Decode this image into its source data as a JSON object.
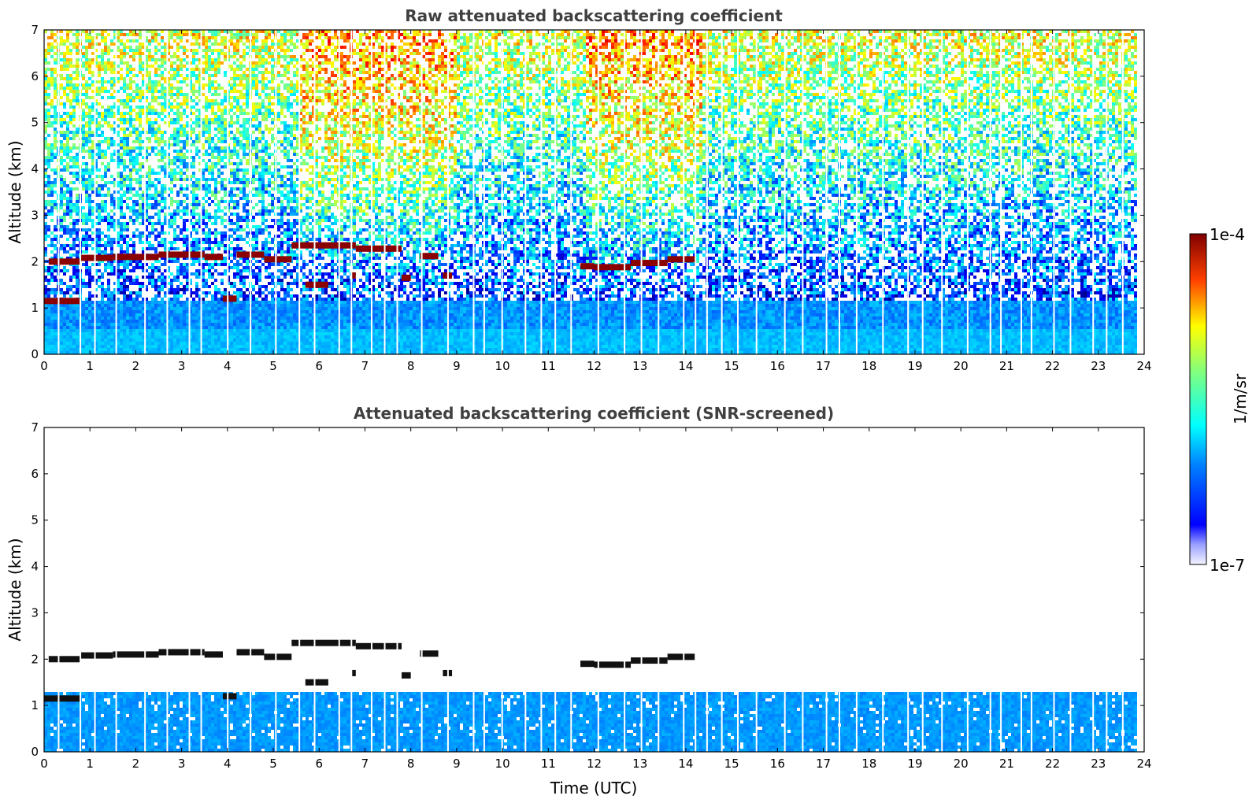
{
  "chart_data": [
    {
      "type": "heatmap",
      "title": "Raw attenuated backscattering coefficient",
      "xlabel": "",
      "ylabel": "Altitude (km)",
      "xlim": [
        0,
        24
      ],
      "ylim": [
        0,
        7
      ],
      "xticks": [
        "0",
        "1",
        "2",
        "3",
        "4",
        "5",
        "6",
        "7",
        "8",
        "9",
        "10",
        "11",
        "12",
        "13",
        "14",
        "15",
        "16",
        "17",
        "18",
        "19",
        "20",
        "21",
        "22",
        "23",
        "24"
      ],
      "yticks": [
        "0",
        "1",
        "2",
        "3",
        "4",
        "5",
        "6",
        "7"
      ],
      "log_scale_colorbar": true,
      "data_end_time": 23.8,
      "cloud_layer": [
        {
          "x": [
            0.1,
            0.8
          ],
          "y": 2.0
        },
        {
          "x": [
            0.8,
            1.5
          ],
          "y": 2.08
        },
        {
          "x": [
            1.5,
            2.5
          ],
          "y": 2.1
        },
        {
          "x": [
            2.5,
            3.5
          ],
          "y": 2.15
        },
        {
          "x": [
            3.5,
            3.9
          ],
          "y": 2.1
        },
        {
          "x": [
            4.2,
            4.8
          ],
          "y": 2.15
        },
        {
          "x": [
            4.8,
            5.4
          ],
          "y": 2.05
        },
        {
          "x": [
            5.4,
            5.9
          ],
          "y": 2.35
        },
        {
          "x": [
            5.9,
            6.8
          ],
          "y": 2.35
        },
        {
          "x": [
            6.8,
            7.8
          ],
          "y": 2.28
        },
        {
          "x": [
            8.2,
            8.6
          ],
          "y": 2.12
        },
        {
          "x": [
            11.7,
            12.0
          ],
          "y": 1.9
        },
        {
          "x": [
            12.0,
            12.8
          ],
          "y": 1.88
        },
        {
          "x": [
            12.8,
            13.6
          ],
          "y": 1.97
        },
        {
          "x": [
            13.6,
            14.2
          ],
          "y": 2.05
        }
      ],
      "low_cloud": [
        {
          "x": [
            0.0,
            0.8
          ],
          "y": 1.15
        },
        {
          "x": [
            3.9,
            4.2
          ],
          "y": 1.2
        },
        {
          "x": [
            5.7,
            6.2
          ],
          "y": 1.5
        },
        {
          "x": [
            6.7,
            6.8
          ],
          "y": 1.7
        },
        {
          "x": [
            7.8,
            8.0
          ],
          "y": 1.65
        },
        {
          "x": [
            8.7,
            8.9
          ],
          "y": 1.7
        }
      ]
    },
    {
      "type": "heatmap",
      "title": "Attenuated backscattering coefficient (SNR-screened)",
      "xlabel": "Time (UTC)",
      "ylabel": "Altitude (km)",
      "xlim": [
        0,
        24
      ],
      "ylim": [
        0,
        7
      ],
      "xticks": [
        "0",
        "1",
        "2",
        "3",
        "4",
        "5",
        "6",
        "7",
        "8",
        "9",
        "10",
        "11",
        "12",
        "13",
        "14",
        "15",
        "16",
        "17",
        "18",
        "19",
        "20",
        "21",
        "22",
        "23",
        "24"
      ],
      "yticks": [
        "0",
        "1",
        "2",
        "3",
        "4",
        "5",
        "6",
        "7"
      ],
      "data_end_time": 23.8
    }
  ],
  "colorbar": {
    "label": "1/m/sr",
    "max_label": "1e-4",
    "min_label": "1e-7",
    "colormap": "jet"
  }
}
